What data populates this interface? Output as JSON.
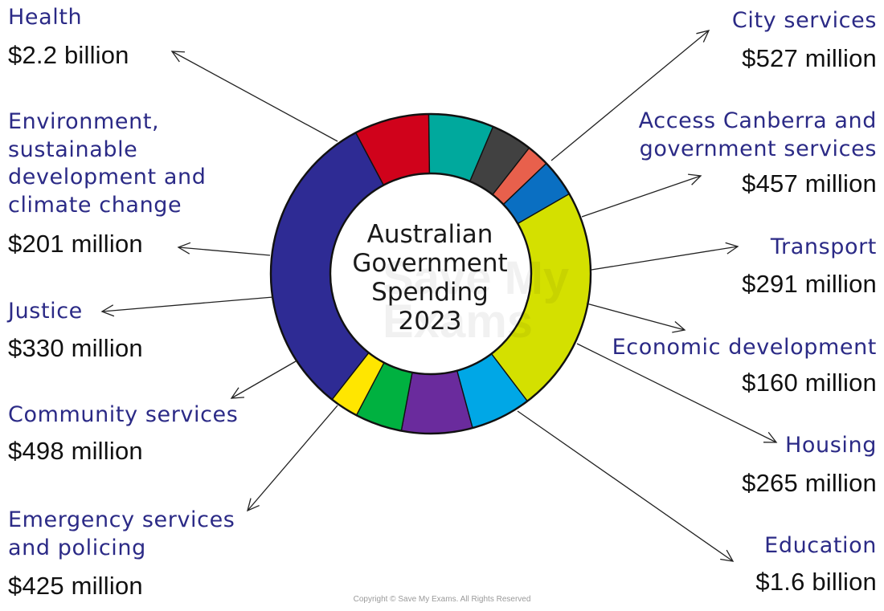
{
  "chart_data": {
    "type": "pie",
    "title": "Australian Government Spending 2023",
    "title_lines": [
      "Australian",
      "Government",
      "Spending",
      "2023"
    ],
    "slices": [
      {
        "label_lines": [
          "City services"
        ],
        "value_text": "$527 million",
        "value": 527,
        "color": "#d0021b",
        "side": "right"
      },
      {
        "label_lines": [
          "Access Canberra and",
          "government services"
        ],
        "value_text": "$457 million",
        "value": 457,
        "color": "#00a99d",
        "side": "right"
      },
      {
        "label_lines": [
          "Transport"
        ],
        "value_text": "$291 million",
        "value": 291,
        "color": "#414141",
        "side": "right"
      },
      {
        "label_lines": [
          "Economic development"
        ],
        "value_text": "$160 million",
        "value": 160,
        "color": "#e8604c",
        "side": "right"
      },
      {
        "label_lines": [
          "Housing"
        ],
        "value_text": "$265 million",
        "value": 265,
        "color": "#0a6fc2",
        "side": "right"
      },
      {
        "label_lines": [
          "Education"
        ],
        "value_text": "$1.6 billion",
        "value": 1600,
        "color": "#d4e000",
        "side": "right"
      },
      {
        "label_lines": [
          "Emergency services",
          "and policing"
        ],
        "value_text": "$425 million",
        "value": 425,
        "color": "#00a7e6",
        "side": "left"
      },
      {
        "label_lines": [
          "Community services"
        ],
        "value_text": "$498 million",
        "value": 498,
        "color": "#6a2b9d",
        "side": "left"
      },
      {
        "label_lines": [
          "Justice"
        ],
        "value_text": "$330 million",
        "value": 330,
        "color": "#00b140",
        "side": "left"
      },
      {
        "label_lines": [
          "Environment,",
          "sustainable",
          "development and",
          "climate change"
        ],
        "value_text": "$201 million",
        "value": 201,
        "color": "#ffe600",
        "side": "left"
      },
      {
        "label_lines": [
          "Health"
        ],
        "value_text": "$2.2 billion",
        "value": 2200,
        "color": "#2e2b94",
        "side": "left"
      }
    ]
  },
  "watermark_lines": [
    "Save My",
    "Exams"
  ],
  "copyright": "Copyright © Save My Exams. All Rights Reserved"
}
